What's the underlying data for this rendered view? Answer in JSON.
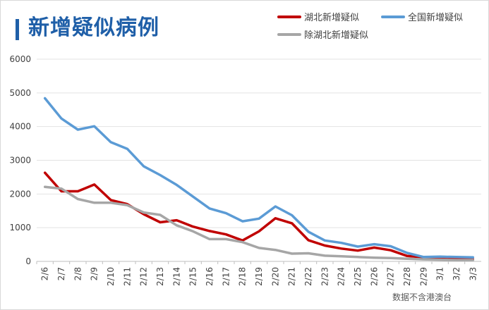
{
  "title": "新增疑似病例",
  "source_note": "数据不含港澳台",
  "chart_data": {
    "type": "line",
    "title": "新增疑似病例",
    "xlabel": "",
    "ylabel": "",
    "x": [
      "2/6",
      "2/7",
      "2/8",
      "2/9",
      "2/10",
      "2/11",
      "2/12",
      "2/13",
      "2/14",
      "2/15",
      "2/16",
      "2/17",
      "2/18",
      "2/19",
      "2/20",
      "2/21",
      "2/22",
      "2/23",
      "2/24",
      "2/25",
      "2/26",
      "2/27",
      "2/28",
      "2/29",
      "3/1",
      "3/2",
      "3/3"
    ],
    "ylim": [
      0,
      6000
    ],
    "yticks": [
      0,
      1000,
      2000,
      3000,
      4000,
      5000,
      6000
    ],
    "grid": true,
    "legend_position": "top-right",
    "series": [
      {
        "name": "湖北新增疑似",
        "color": "#c00000",
        "values": [
          2630,
          2080,
          2080,
          2280,
          1820,
          1700,
          1400,
          1160,
          1220,
          1030,
          900,
          800,
          620,
          890,
          1280,
          1130,
          630,
          470,
          380,
          320,
          410,
          330,
          160,
          120,
          100,
          70,
          60
        ]
      },
      {
        "name": "全国新增疑似",
        "color": "#5b9bd5",
        "values": [
          4840,
          4240,
          3910,
          4010,
          3540,
          3340,
          2820,
          2560,
          2270,
          1920,
          1570,
          1430,
          1190,
          1270,
          1630,
          1370,
          880,
          620,
          550,
          440,
          510,
          450,
          250,
          130,
          140,
          130,
          120
        ]
      },
      {
        "name": "除湖北新增疑似",
        "color": "#a6a6a6",
        "values": [
          2210,
          2160,
          1850,
          1740,
          1740,
          1670,
          1450,
          1380,
          1070,
          890,
          660,
          660,
          570,
          400,
          340,
          230,
          240,
          170,
          150,
          130,
          110,
          100,
          80,
          60,
          50,
          40,
          40
        ]
      }
    ]
  }
}
